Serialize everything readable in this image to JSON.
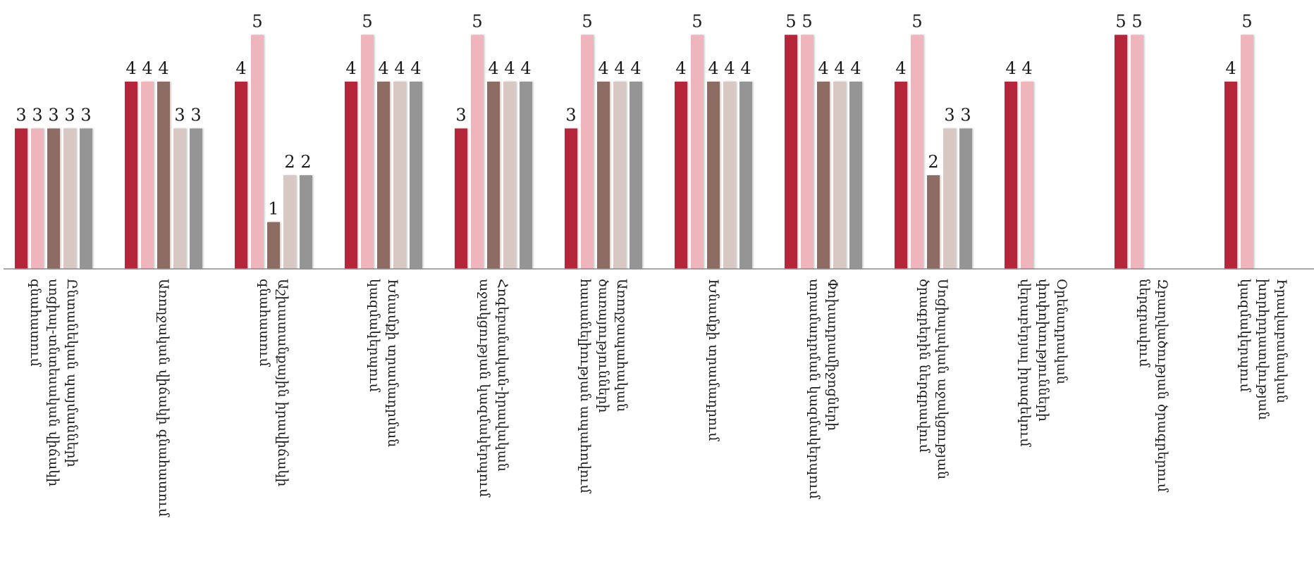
{
  "chart_data": {
    "type": "bar",
    "title": "",
    "xlabel": "",
    "ylabel": "",
    "ylim": [
      0,
      5.7
    ],
    "grid": false,
    "legend": "none",
    "colors": [
      "#b5273a",
      "#efb5bd",
      "#8c6c64",
      "#d8c8c4",
      "#959595"
    ],
    "categories": [
      "Ընտանեկան պայմանների սոցիալ-տնտեսական վիճակի գնահատում",
      "Առողջական վիճակի գնահատում",
      "Աշխատանքային իրավիճակի գնահատում",
      "Խնամքի տրամադրման կազմակերպում",
      "Հոգեբանական-իրավական աջակցության կազմակերպում",
      "Առողջապահական ծառայությունների հասանելիության ապահովում",
      "Խնամքի տրամադրում",
      "Փոխադրամիջոցների տրամադրման կազմակերպում",
      "Սոցիալական աջակցության ծրագրերին ներգրավում",
      "Օրենսդրական փոփոխությունների վերաբերյալ իրազեկում",
      "Զբաղվածության ծրագրերում ներգրավում",
      "Իրավաբանական խորհրդատվության կազմակերպում"
    ],
    "series": [
      {
        "values": [
          3,
          4,
          4,
          4,
          3,
          3,
          4,
          5,
          4,
          4,
          5,
          4
        ]
      },
      {
        "values": [
          3,
          4,
          5,
          5,
          5,
          5,
          5,
          5,
          5,
          4,
          5,
          5
        ]
      },
      {
        "values": [
          3,
          4,
          1,
          4,
          4,
          4,
          4,
          4,
          2,
          null,
          null,
          null
        ]
      },
      {
        "values": [
          3,
          3,
          2,
          4,
          4,
          4,
          4,
          4,
          3,
          null,
          null,
          null
        ]
      },
      {
        "values": [
          3,
          3,
          2,
          4,
          4,
          4,
          4,
          4,
          3,
          null,
          null,
          null
        ]
      }
    ]
  }
}
